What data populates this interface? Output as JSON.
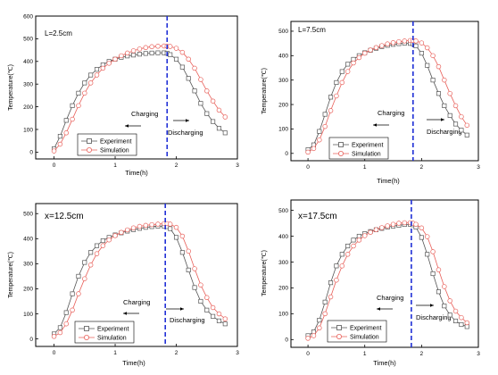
{
  "colors": {
    "experiment": "#555555",
    "simulation": "#e8605a",
    "divider": "#1f2fd6",
    "axis": "#000000"
  },
  "chart_data": [
    {
      "type": "line",
      "annotation": "L=2.5cm",
      "xlabel": "Time(h)",
      "ylabel": "Temperature(℃)",
      "xlim": [
        -0.3,
        3
      ],
      "ylim": [
        -30,
        600
      ],
      "xticks": [
        0,
        1,
        2,
        3
      ],
      "yticks": [
        0,
        100,
        200,
        300,
        400,
        500,
        600
      ],
      "divider_x": 1.85,
      "charging_label": "Charging",
      "discharging_label": "Discharging",
      "legend_position": "bottom-left",
      "series": [
        {
          "name": "Experiment",
          "x": [
            0,
            0.1,
            0.2,
            0.3,
            0.4,
            0.5,
            0.6,
            0.7,
            0.8,
            0.9,
            1.0,
            1.1,
            1.2,
            1.3,
            1.4,
            1.5,
            1.6,
            1.7,
            1.8,
            1.85,
            1.9,
            2.0,
            2.1,
            2.2,
            2.3,
            2.4,
            2.5,
            2.6,
            2.7,
            2.8
          ],
          "y": [
            15,
            70,
            140,
            205,
            260,
            305,
            340,
            365,
            385,
            400,
            410,
            418,
            424,
            428,
            432,
            435,
            437,
            438,
            438,
            436,
            430,
            410,
            375,
            325,
            270,
            215,
            170,
            135,
            105,
            85
          ]
        },
        {
          "name": "Simulation",
          "x": [
            0,
            0.1,
            0.2,
            0.3,
            0.4,
            0.5,
            0.6,
            0.7,
            0.8,
            0.9,
            1.0,
            1.1,
            1.2,
            1.3,
            1.4,
            1.5,
            1.6,
            1.7,
            1.8,
            1.85,
            1.9,
            2.0,
            2.1,
            2.2,
            2.3,
            2.4,
            2.5,
            2.6,
            2.7,
            2.8
          ],
          "y": [
            5,
            35,
            85,
            145,
            205,
            260,
            305,
            340,
            370,
            392,
            410,
            425,
            437,
            447,
            455,
            461,
            465,
            467,
            468,
            467,
            466,
            458,
            440,
            410,
            370,
            320,
            270,
            225,
            185,
            155
          ]
        }
      ]
    },
    {
      "type": "line",
      "annotation": "L=7.5cm",
      "xlabel": "Time(h)",
      "ylabel": "Temperature(℃)",
      "xlim": [
        -0.3,
        3
      ],
      "ylim": [
        -30,
        540
      ],
      "xticks": [
        0,
        1,
        2,
        3
      ],
      "yticks": [
        0,
        100,
        200,
        300,
        400,
        500
      ],
      "divider_x": 1.85,
      "charging_label": "Charging",
      "discharging_label": "Discharging",
      "legend_position": "bottom-left",
      "series": [
        {
          "name": "Experiment",
          "x": [
            0,
            0.1,
            0.2,
            0.3,
            0.4,
            0.5,
            0.6,
            0.7,
            0.8,
            0.9,
            1.0,
            1.1,
            1.2,
            1.3,
            1.4,
            1.5,
            1.6,
            1.7,
            1.8,
            1.85,
            1.9,
            2.0,
            2.1,
            2.2,
            2.3,
            2.4,
            2.5,
            2.6,
            2.7,
            2.8
          ],
          "y": [
            15,
            35,
            90,
            160,
            230,
            290,
            335,
            365,
            385,
            400,
            412,
            422,
            430,
            437,
            442,
            446,
            449,
            451,
            450,
            448,
            440,
            410,
            360,
            300,
            245,
            195,
            155,
            120,
            95,
            75
          ]
        },
        {
          "name": "Simulation",
          "x": [
            0,
            0.1,
            0.2,
            0.3,
            0.4,
            0.5,
            0.6,
            0.7,
            0.8,
            0.9,
            1.0,
            1.1,
            1.2,
            1.3,
            1.4,
            1.5,
            1.6,
            1.7,
            1.8,
            1.85,
            1.9,
            2.0,
            2.1,
            2.2,
            2.3,
            2.4,
            2.5,
            2.6,
            2.7,
            2.8
          ],
          "y": [
            5,
            20,
            55,
            110,
            175,
            235,
            290,
            335,
            370,
            392,
            410,
            423,
            433,
            441,
            448,
            453,
            457,
            460,
            462,
            462,
            460,
            452,
            432,
            400,
            355,
            300,
            245,
            195,
            150,
            115
          ]
        }
      ]
    },
    {
      "type": "line",
      "annotation": "x=12.5cm",
      "xlabel": "Time(h)",
      "ylabel": "Temperature(℃)",
      "xlim": [
        -0.3,
        3
      ],
      "ylim": [
        -30,
        540
      ],
      "xticks": [
        0,
        1,
        2,
        3
      ],
      "yticks": [
        0,
        100,
        200,
        300,
        400,
        500
      ],
      "divider_x": 1.82,
      "charging_label": "Charging",
      "discharging_label": "Discharging",
      "legend_position": "bottom-left",
      "series": [
        {
          "name": "Experiment",
          "x": [
            0,
            0.1,
            0.2,
            0.3,
            0.4,
            0.5,
            0.6,
            0.7,
            0.8,
            0.9,
            1.0,
            1.1,
            1.2,
            1.3,
            1.4,
            1.5,
            1.6,
            1.7,
            1.8,
            1.85,
            1.9,
            2.0,
            2.1,
            2.2,
            2.3,
            2.4,
            2.5,
            2.6,
            2.7,
            2.8
          ],
          "y": [
            20,
            45,
            105,
            180,
            250,
            305,
            345,
            372,
            392,
            405,
            415,
            423,
            430,
            436,
            441,
            445,
            448,
            450,
            450,
            448,
            440,
            405,
            345,
            275,
            205,
            150,
            115,
            90,
            72,
            60
          ]
        },
        {
          "name": "Simulation",
          "x": [
            0,
            0.1,
            0.2,
            0.3,
            0.4,
            0.5,
            0.6,
            0.7,
            0.8,
            0.9,
            1.0,
            1.1,
            1.2,
            1.3,
            1.4,
            1.5,
            1.6,
            1.7,
            1.8,
            1.85,
            1.9,
            2.0,
            2.1,
            2.2,
            2.3,
            2.4,
            2.5,
            2.6,
            2.7,
            2.8
          ],
          "y": [
            10,
            25,
            60,
            115,
            180,
            240,
            295,
            340,
            372,
            395,
            412,
            425,
            435,
            443,
            449,
            453,
            456,
            458,
            460,
            460,
            458,
            445,
            410,
            350,
            280,
            215,
            165,
            125,
            100,
            80
          ]
        }
      ]
    },
    {
      "type": "line",
      "annotation": "x=17.5cm",
      "xlabel": "Time(h)",
      "ylabel": "Temperature(℃)",
      "xlim": [
        -0.3,
        3
      ],
      "ylim": [
        -30,
        540
      ],
      "xticks": [
        0,
        1,
        2,
        3
      ],
      "yticks": [
        0,
        100,
        200,
        300,
        400,
        500
      ],
      "divider_x": 1.82,
      "charging_label": "Charging",
      "discharging_label": "Discharging",
      "legend_position": "bottom-left",
      "series": [
        {
          "name": "Experiment",
          "x": [
            0,
            0.1,
            0.2,
            0.3,
            0.4,
            0.5,
            0.6,
            0.7,
            0.8,
            0.9,
            1.0,
            1.1,
            1.2,
            1.3,
            1.4,
            1.5,
            1.6,
            1.7,
            1.8,
            1.85,
            1.9,
            2.0,
            2.1,
            2.2,
            2.3,
            2.4,
            2.5,
            2.6,
            2.7,
            2.8
          ],
          "y": [
            15,
            30,
            75,
            145,
            220,
            285,
            330,
            362,
            385,
            400,
            410,
            418,
            425,
            430,
            435,
            439,
            442,
            445,
            446,
            444,
            435,
            395,
            330,
            255,
            185,
            130,
            95,
            72,
            58,
            50
          ]
        },
        {
          "name": "Simulation",
          "x": [
            0,
            0.1,
            0.2,
            0.3,
            0.4,
            0.5,
            0.6,
            0.7,
            0.8,
            0.9,
            1.0,
            1.1,
            1.2,
            1.3,
            1.4,
            1.5,
            1.6,
            1.7,
            1.8,
            1.85,
            1.9,
            2.0,
            2.1,
            2.2,
            2.3,
            2.4,
            2.5,
            2.6,
            2.7,
            2.8
          ],
          "y": [
            5,
            15,
            45,
            100,
            165,
            230,
            285,
            330,
            362,
            385,
            402,
            415,
            425,
            433,
            440,
            446,
            450,
            452,
            452,
            450,
            446,
            432,
            398,
            340,
            270,
            205,
            150,
            110,
            85,
            65
          ]
        }
      ]
    }
  ]
}
